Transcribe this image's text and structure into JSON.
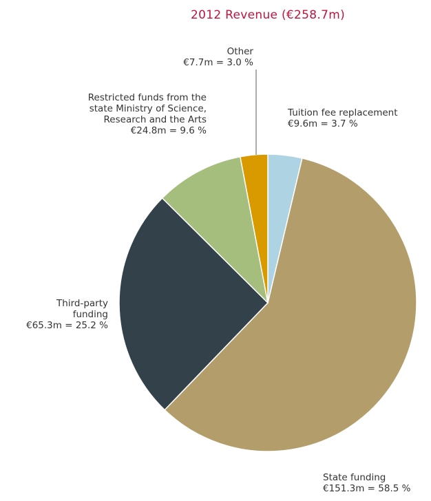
{
  "chart_data": {
    "type": "pie",
    "title": "2012 Revenue (€258.7m)",
    "title_color": "#c0143c",
    "slices": [
      {
        "name": "Tuition fee replacement",
        "value": 9.6,
        "percent": 3.7,
        "color": "#aed3e3",
        "label_lines": [
          "Tuition fee replacement",
          "€9.6m = 3.7 %"
        ]
      },
      {
        "name": "State funding",
        "value": 151.3,
        "percent": 58.5,
        "color": "#b39e6b",
        "label_lines": [
          "State funding",
          "€151.3m = 58.5 %"
        ]
      },
      {
        "name": "Third-party funding",
        "value": 65.3,
        "percent": 25.2,
        "color": "#33414b",
        "label_lines": [
          "Third-party",
          "funding",
          "€65.3m = 25.2 %"
        ]
      },
      {
        "name": "Restricted funds from the state Ministry of Science, Research and the Arts",
        "value": 24.8,
        "percent": 9.6,
        "color": "#a5be7d",
        "label_lines": [
          "Restricted funds from the",
          "state Ministry of Science,",
          "Research and the Arts",
          "€24.8m = 9.6 %"
        ]
      },
      {
        "name": "Other",
        "value": 7.7,
        "percent": 3.0,
        "color": "#d99a00",
        "label_lines": [
          "Other",
          "€7.7m = 3.0 %"
        ]
      }
    ]
  }
}
